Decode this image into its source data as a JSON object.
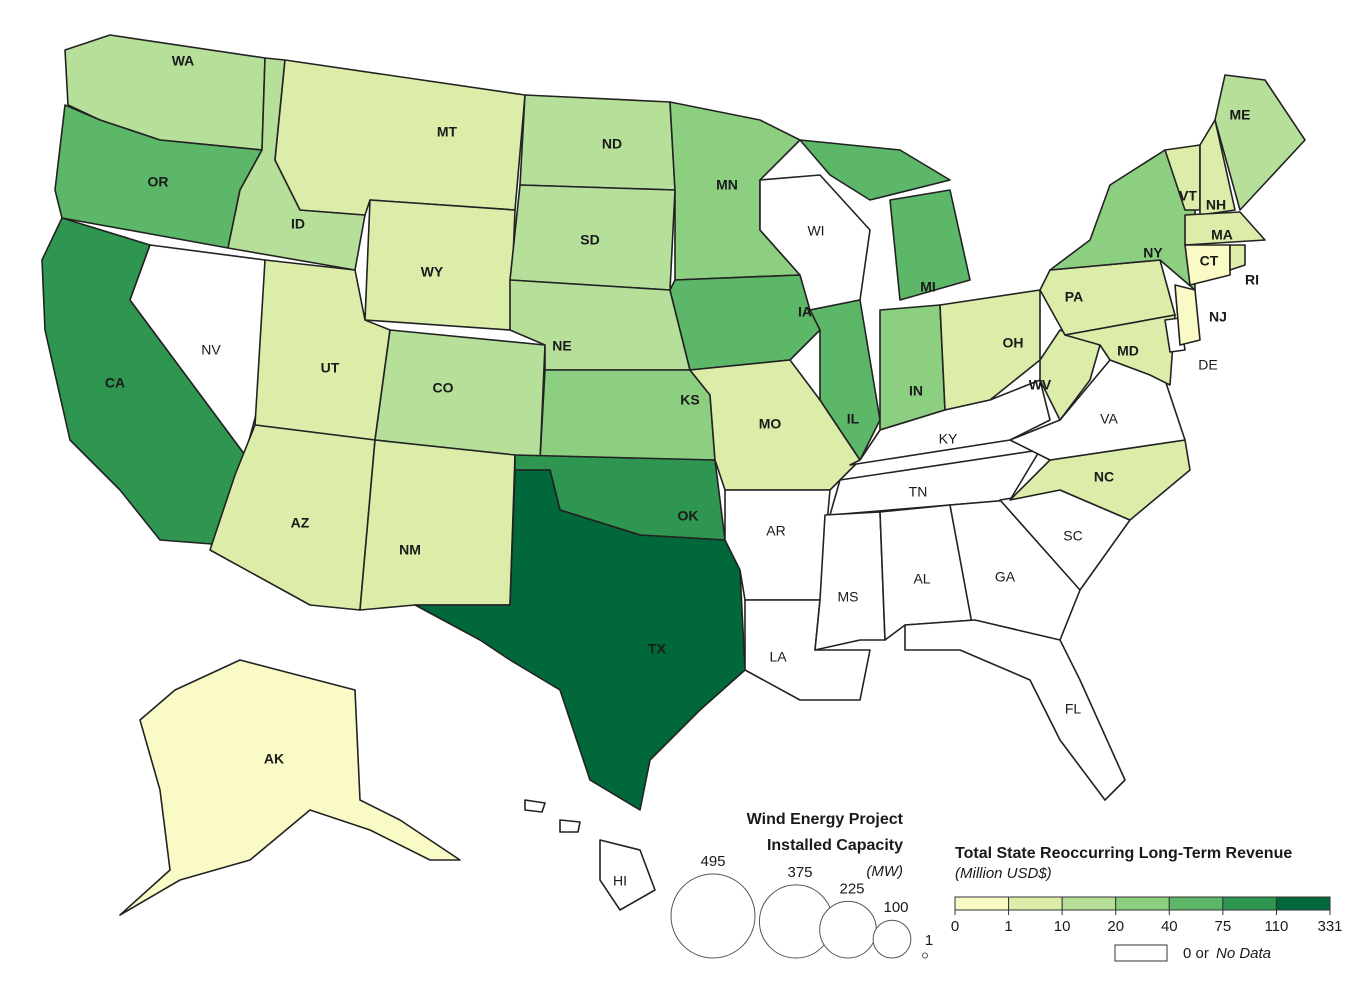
{
  "map": {
    "states": [
      {
        "label": "WA",
        "color": "#b6e09a"
      },
      {
        "label": "OR",
        "color": "#5cb868"
      },
      {
        "label": "CA",
        "color": "#2e9650"
      },
      {
        "label": "NV",
        "color": "#ffffff"
      },
      {
        "label": "ID",
        "color": "#b6e09a"
      },
      {
        "label": "MT",
        "color": "#dcedaa"
      },
      {
        "label": "WY",
        "color": "#dcedaa"
      },
      {
        "label": "UT",
        "color": "#dcedaa"
      },
      {
        "label": "AZ",
        "color": "#dcedaa"
      },
      {
        "label": "CO",
        "color": "#b6e09a"
      },
      {
        "label": "NM",
        "color": "#dcedaa"
      },
      {
        "label": "ND",
        "color": "#b6e09a"
      },
      {
        "label": "SD",
        "color": "#b6e09a"
      },
      {
        "label": "NE",
        "color": "#b6e09a"
      },
      {
        "label": "KS",
        "color": "#8dcf81"
      },
      {
        "label": "OK",
        "color": "#2e9650"
      },
      {
        "label": "TX",
        "color": "#00683a"
      },
      {
        "label": "MN",
        "color": "#8dcf81"
      },
      {
        "label": "IA",
        "color": "#5cb868"
      },
      {
        "label": "MO",
        "color": "#dcedaa"
      },
      {
        "label": "AR",
        "color": "#ffffff"
      },
      {
        "label": "LA",
        "color": "#ffffff"
      },
      {
        "label": "WI",
        "color": "#ffffff"
      },
      {
        "label": "IL",
        "color": "#5cb868"
      },
      {
        "label": "MI",
        "color": "#5cb868"
      },
      {
        "label": "IN",
        "color": "#8dcf81"
      },
      {
        "label": "OH",
        "color": "#dcedaa"
      },
      {
        "label": "KY",
        "color": "#ffffff"
      },
      {
        "label": "TN",
        "color": "#ffffff"
      },
      {
        "label": "MS",
        "color": "#ffffff"
      },
      {
        "label": "AL",
        "color": "#ffffff"
      },
      {
        "label": "GA",
        "color": "#ffffff"
      },
      {
        "label": "FL",
        "color": "#ffffff"
      },
      {
        "label": "SC",
        "color": "#ffffff"
      },
      {
        "label": "NC",
        "color": "#dcedaa"
      },
      {
        "label": "VA",
        "color": "#ffffff"
      },
      {
        "label": "WV",
        "color": "#dcedaa"
      },
      {
        "label": "PA",
        "color": "#dcedaa"
      },
      {
        "label": "NY",
        "color": "#8dcf81"
      },
      {
        "label": "MD",
        "color": "#dcedaa"
      },
      {
        "label": "DE",
        "color": "#ffffff"
      },
      {
        "label": "NJ",
        "color": "#f9fac6"
      },
      {
        "label": "VT",
        "color": "#dcedaa"
      },
      {
        "label": "NH",
        "color": "#dcedaa"
      },
      {
        "label": "ME",
        "color": "#b6e09a"
      },
      {
        "label": "MA",
        "color": "#dcedaa"
      },
      {
        "label": "CT",
        "color": "#f9fac6"
      },
      {
        "label": "RI",
        "color": "#dcedaa"
      },
      {
        "label": "AK",
        "color": "#f9fac6"
      },
      {
        "label": "HI",
        "color": "#ffffff"
      }
    ]
  },
  "size_legend": {
    "title_lines": [
      "Wind Energy Project",
      "Installed Capacity"
    ],
    "unit": "(MW)",
    "values": [
      495,
      375,
      225,
      100,
      1
    ]
  },
  "color_legend": {
    "title": "Total State Reoccurring Long-Term Revenue",
    "subtitle": "(Million USD$)",
    "ticks": [
      0,
      1,
      10,
      20,
      40,
      75,
      110,
      331
    ],
    "colors": [
      "#f9fac6",
      "#dcedaa",
      "#b6e09a",
      "#8dcf81",
      "#5cb868",
      "#2e9650",
      "#00683a"
    ],
    "no_data_color": "#ffffff",
    "no_data_prefix": "0 or",
    "no_data_label": "No Data"
  }
}
